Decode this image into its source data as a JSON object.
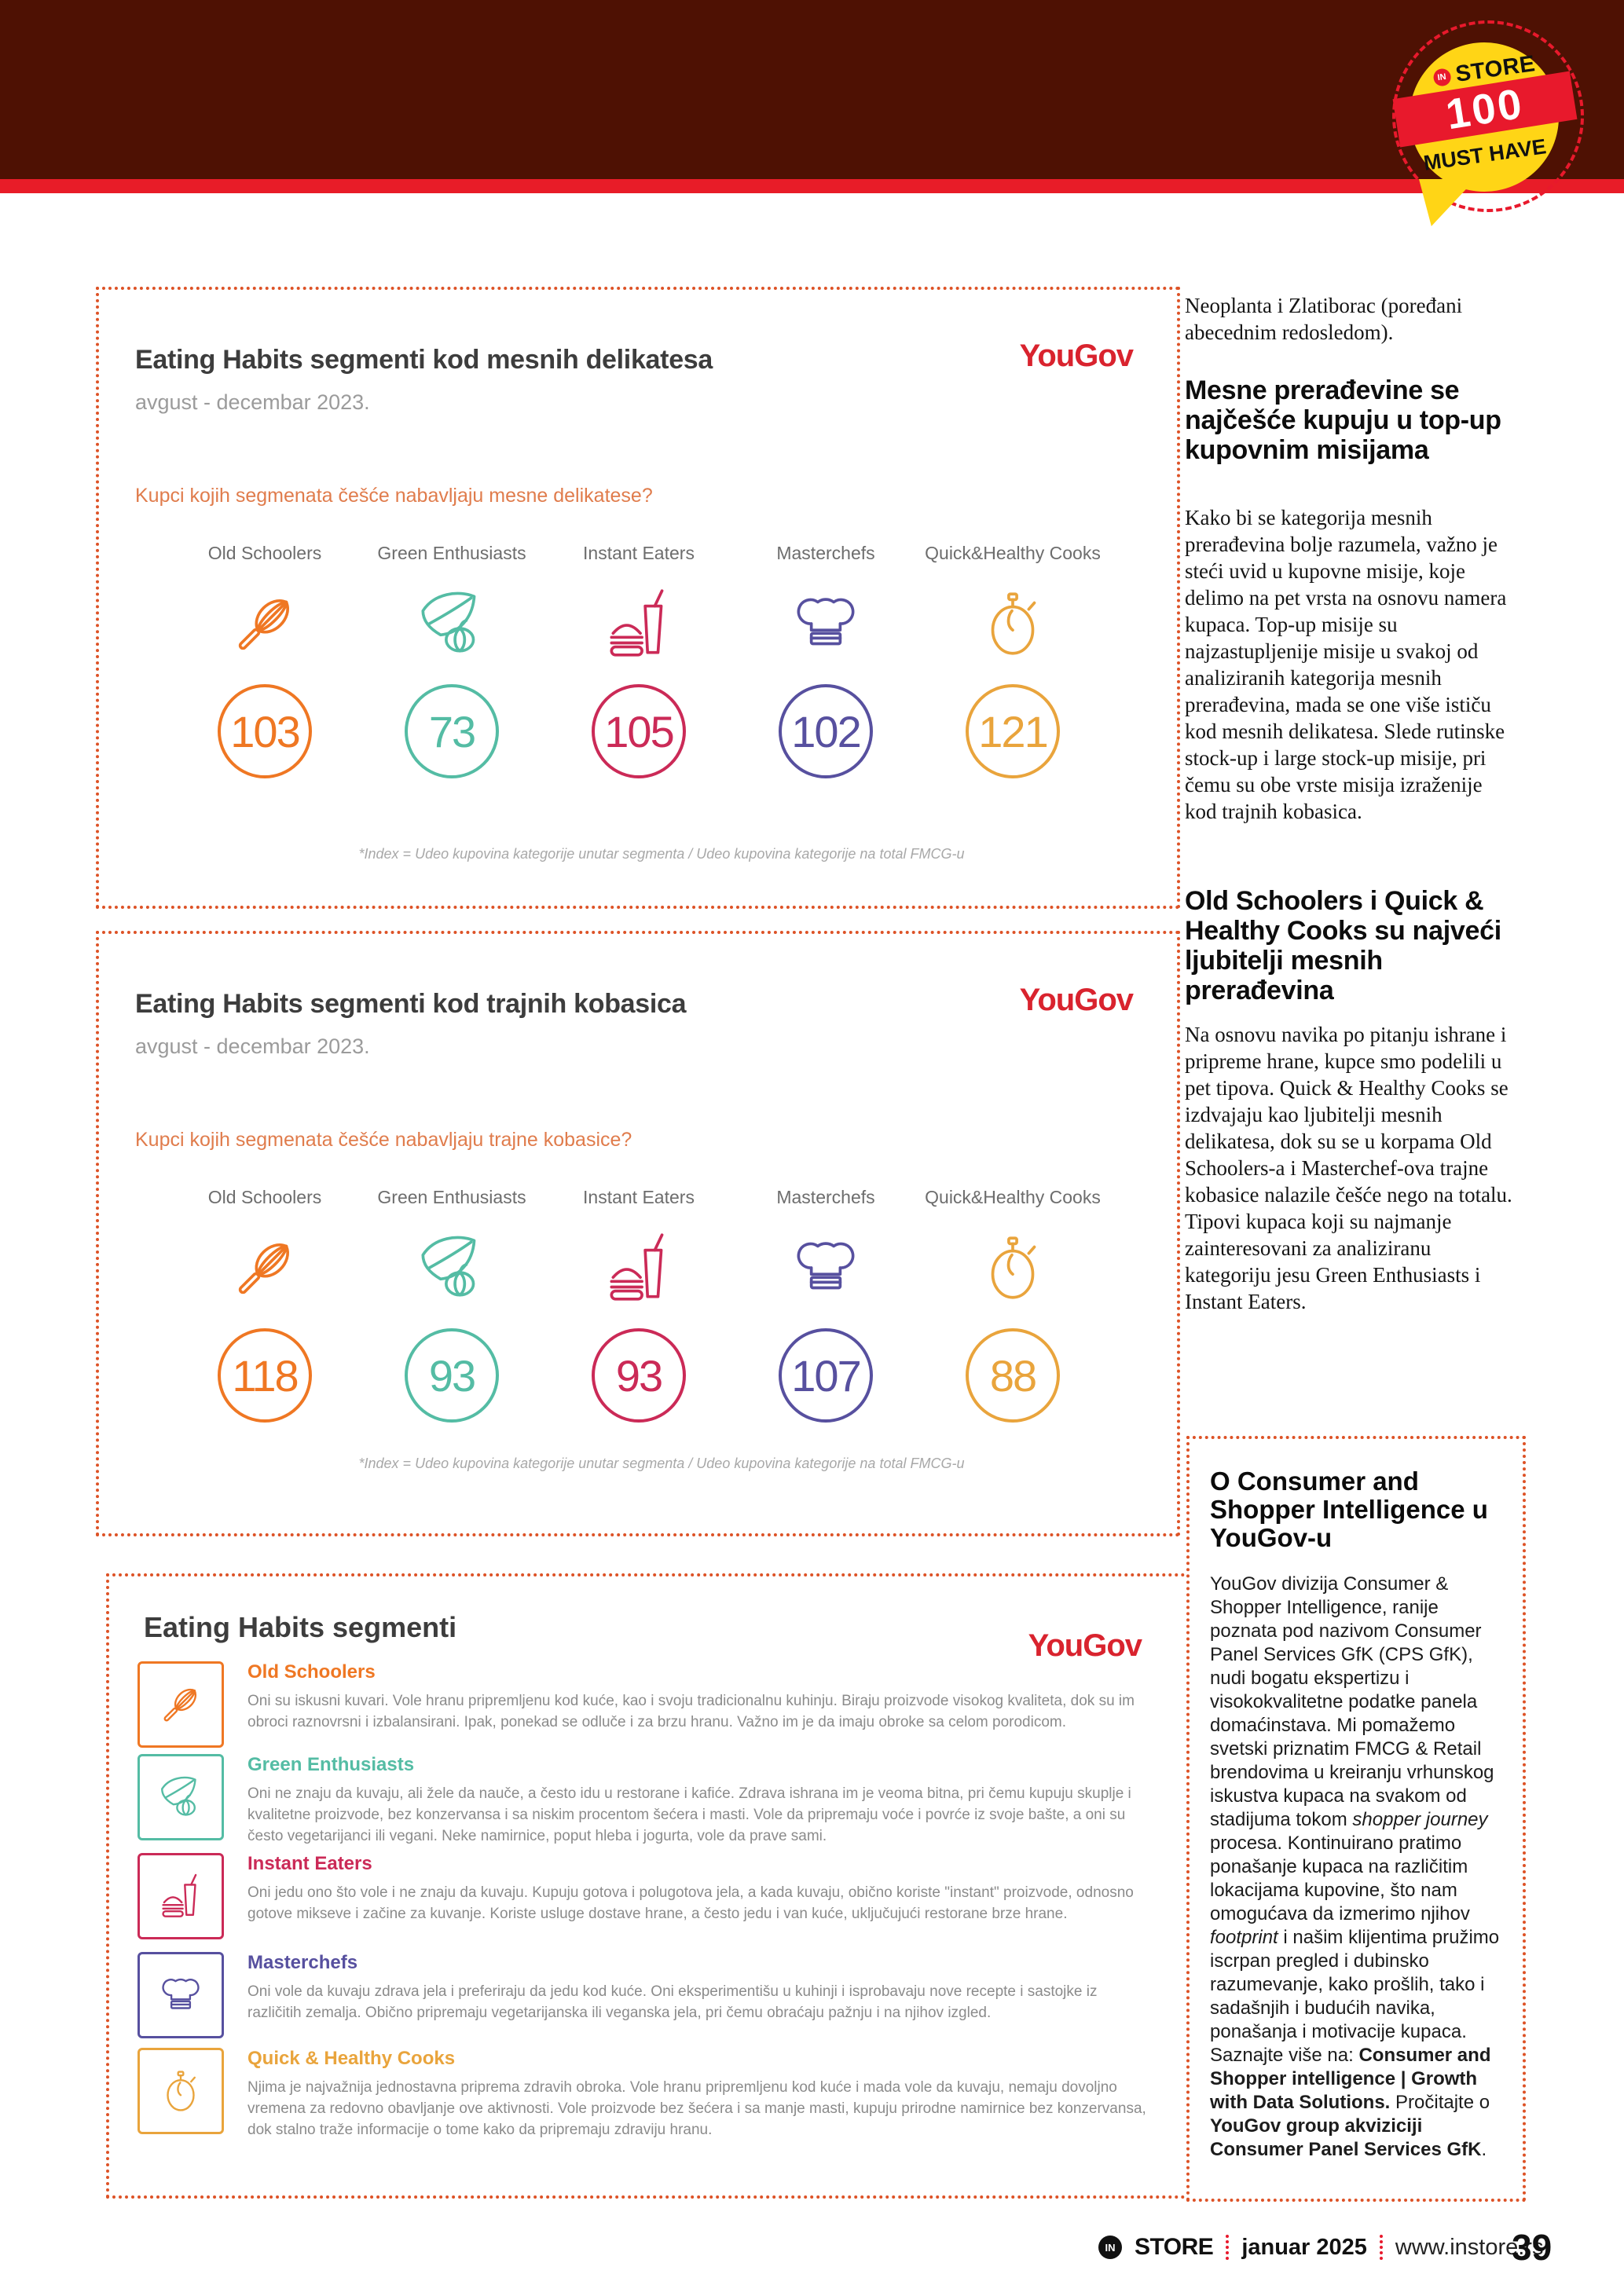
{
  "badge": {
    "in": "IN",
    "store": "STORE",
    "number": "100",
    "must_have": "MUST HAVE"
  },
  "brand": {
    "yougov": "YouGov"
  },
  "colors": {
    "band_maroon": "#4e1103",
    "strip_red": "#e81c28",
    "dashed_border": "#dd5226",
    "yougov_red": "#d9232e",
    "question_orange": "#e07c4c",
    "old_schoolers": "#ef7723",
    "green_enthusiasts": "#54bca4",
    "instant_eaters": "#cb2a57",
    "masterchefs": "#57509f",
    "quick_healthy": "#e9a43c"
  },
  "segments": [
    {
      "name": "Old Schoolers",
      "color": "#ef7723",
      "icon": "whisk-icon"
    },
    {
      "name": "Green Enthusiasts",
      "color": "#54bca4",
      "icon": "vegetables-icon"
    },
    {
      "name": "Instant Eaters",
      "color": "#cb2a57",
      "icon": "fastfood-icon"
    },
    {
      "name": "Masterchefs",
      "color": "#57509f",
      "icon": "chef-hat-icon"
    },
    {
      "name": "Quick&Healthy Cooks",
      "color": "#e9a43c",
      "icon": "timer-icon"
    }
  ],
  "charts": [
    {
      "title": "Eating Habits segmenti kod mesnih delikatesa",
      "subtitle": "avgust - decembar 2023.",
      "question": "Kupci kojih segmenata češće nabavljaju mesne delikatese?",
      "values": [
        "103",
        "73",
        "105",
        "102",
        "121"
      ],
      "footnote": "*Index = Udeo kupovina kategorije unutar segmenta / Udeo kupovina kategorije na total FMCG-u"
    },
    {
      "title": "Eating Habits segmenti kod trajnih kobasica",
      "subtitle": "avgust - decembar 2023.",
      "question": "Kupci kojih segmenata češće nabavljaju trajne kobasice?",
      "values": [
        "118",
        "93",
        "93",
        "107",
        "88"
      ],
      "footnote": "*Index = Udeo kupovina kategorije unutar segmenta / Udeo kupovina kategorije na total FMCG-u"
    }
  ],
  "chart_data": [
    {
      "type": "table",
      "title": "Eating Habits segmenti kod mesnih delikatesa (avgust - decembar 2023.)",
      "categories": [
        "Old Schoolers",
        "Green Enthusiasts",
        "Instant Eaters",
        "Masterchefs",
        "Quick&Healthy Cooks"
      ],
      "values": [
        103,
        73,
        105,
        102,
        121
      ],
      "ylabel": "Index",
      "annotations": "*Index = Udeo kupovina kategorije unutar segmenta / Udeo kupovina kategorije na total FMCG-u"
    },
    {
      "type": "table",
      "title": "Eating Habits segmenti kod trajnih kobasica (avgust - decembar 2023.)",
      "categories": [
        "Old Schoolers",
        "Green Enthusiasts",
        "Instant Eaters",
        "Masterchefs",
        "Quick&Healthy Cooks"
      ],
      "values": [
        118,
        93,
        93,
        107,
        88
      ],
      "ylabel": "Index",
      "annotations": "*Index = Udeo kupovina kategorije unutar segmenta / Udeo kupovina kategorije na total FMCG-u"
    }
  ],
  "segments_box": {
    "title": "Eating Habits segmenti",
    "items": [
      {
        "name": "Old Schoolers",
        "description": "Oni su iskusni kuvari. Vole hranu pripremljenu kod kuće, kao i svoju tradicionalnu kuhinju. Biraju proizvode visokog kvaliteta, dok su im obroci raznovrsni i izbalansirani. Ipak, ponekad se odluče i za brzu hranu. Važno im je da imaju obroke sa celom porodicom."
      },
      {
        "name": "Green Enthusiasts",
        "description": "Oni ne znaju da kuvaju, ali žele da nauče, a često idu u restorane i kafiće. Zdrava ishrana im je veoma bitna, pri čemu kupuju skuplje i kvalitetne proizvode, bez konzervansa i sa niskim procentom šećera i masti. Vole da pripremaju voće i povrće iz svoje bašte, a oni su često vegetarijanci ili vegani. Neke namirnice, poput hleba i jogurta, vole da prave sami."
      },
      {
        "name": "Instant Eaters",
        "description": "Oni jedu ono što vole i ne znaju da kuvaju. Kupuju gotova i polugotova jela, a kada kuvaju, obično koriste \"instant\" proizvode, odnosno gotove mikseve i začine za kuvanje. Koriste usluge dostave hrane, a često jedu i van kuće, uključujući restorane brze hrane."
      },
      {
        "name": "Masterchefs",
        "description": "Oni vole da kuvaju zdrava jela i preferiraju da jedu kod kuće. Oni eksperimentišu u kuhinji i isprobavaju nove recepte i sastojke iz različitih zemalja. Obično pripremaju vegetarijanska ili veganska jela, pri čemu obraćaju pažnju i na njihov izgled."
      },
      {
        "name": "Quick & Healthy Cooks",
        "description": "Njima je najvažnija jednostavna priprema zdravih obroka. Vole hranu pripremljenu kod kuće i mada vole da kuvaju, nemaju dovoljno vremena za redovno obavljanje ove aktivnosti. Vole proizvode bez šećera i sa manje masti, kupuju prirodne namirnice bez konzervansa, dok stalno traže informacije o tome kako da pripremaju zdraviju hranu."
      }
    ]
  },
  "right_column": {
    "intro": "Neoplanta i Zlatiborac (poređani abecednim redosledom).",
    "heading1": "Mesne prerađevine se najčešće kupuju u top-up kupovnim misijama",
    "para1": "Kako bi se kategorija mesnih prerađevina bolje razumela, važno je steći uvid u kupovne misije, koje delimo na pet vrsta na osnovu namera kupaca. Top-up misije su najzastupljenije misije u svakoj od analiziranih kategorija mesnih prerađevina, mada se one više ističu kod mesnih delikatesa. Slede rutinske stock-up i large stock-up misije, pri čemu su obe vrste misija izraženije kod trajnih kobasica.",
    "heading2": "Old Schoolers i Quick & Healthy Cooks su najveći ljubitelji mesnih prerađevina",
    "para2": "Na osnovu navika po pitanju ishrane i pripreme hrane, kupce smo podelili u pet tipova. Quick & Healthy Cooks se izdvajaju kao ljubitelji mesnih delikatesa, dok su se u korpama Old Schoolers-a i Masterchef-ova trajne kobasice nalazile češće nego na totalu. Tipovi kupaca koji su najmanje zainteresovani za analiziranu kategoriju jesu Green Enthusiasts i Instant Eaters.",
    "info_box": {
      "title": "O Consumer and Shopper Intelligence u YouGov-u",
      "body_segments": [
        {
          "text": "YouGov divizija Consumer & Shopper Intelligence, ranije poznata pod nazivom Consumer Panel Services GfK (CPS GfK), nudi bogatu ekspertizu i visokokvalitetne podatke panela domaćinstava. Mi pomažemo svetski priznatim FMCG & Retail brendovima u kreiranju vrhunskog iskustva kupaca na svakom od stadijuma tokom ",
          "style": "normal"
        },
        {
          "text": "shopper journey",
          "style": "italic"
        },
        {
          "text": " procesa. Kontinuirano pratimo ponašanje kupaca na različitim lokacijama kupovine, što nam omogućava da izmerimo njihov ",
          "style": "normal"
        },
        {
          "text": "footprint",
          "style": "italic"
        },
        {
          "text": " i našim klijentima pružimo iscrpan pregled i dubinsko razumevanje, kako prošlih, tako i sadašnjih i budućih navika, ponašanja i motivacije kupaca. Saznajte više na: ",
          "style": "normal"
        },
        {
          "text": "Consumer and Shopper intelligence | Growth with Data Solutions.",
          "style": "bold"
        },
        {
          "text": " Pročitajte o ",
          "style": "normal"
        },
        {
          "text": "YouGov group akviziciji Consumer Panel Services GfK",
          "style": "bold"
        },
        {
          "text": ".",
          "style": "normal"
        }
      ]
    }
  },
  "footer": {
    "brand_in": "IN",
    "brand": "STORE",
    "issue": "januar 2025",
    "website": "www.instore.rs",
    "page_number": "39"
  }
}
